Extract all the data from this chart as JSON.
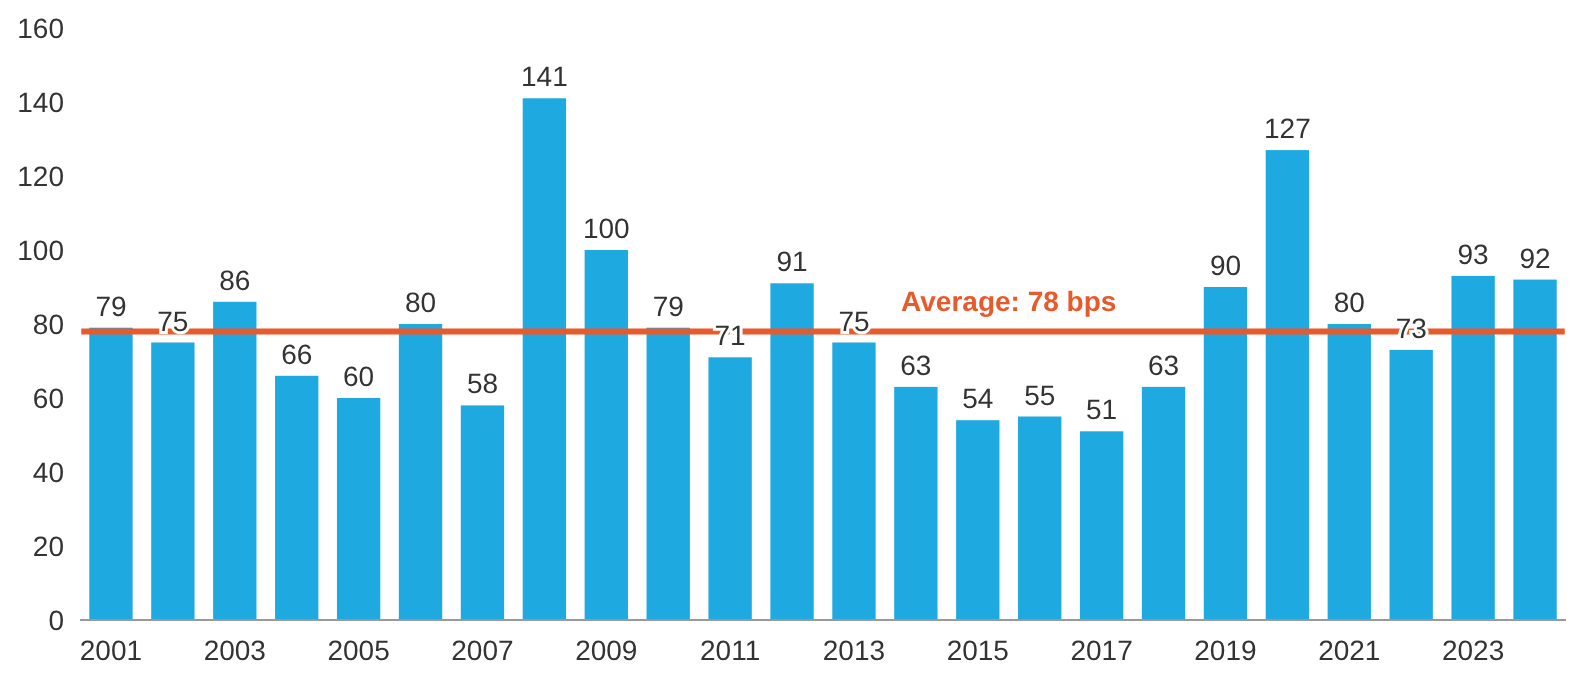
{
  "chart_data": {
    "type": "bar",
    "categories": [
      "2001",
      null,
      "2003",
      null,
      "2005",
      null,
      "2007",
      null,
      "2009",
      null,
      "2011",
      null,
      "2013",
      null,
      "2015",
      null,
      "2017",
      null,
      "2019",
      null,
      "2021",
      null,
      "2023",
      null
    ],
    "values": [
      79,
      75,
      86,
      66,
      60,
      80,
      58,
      141,
      100,
      79,
      71,
      91,
      75,
      63,
      54,
      55,
      51,
      63,
      90,
      127,
      80,
      73,
      93,
      92
    ],
    "color": "#1fa9e1",
    "data_labels": true,
    "ylim": [
      0,
      160
    ],
    "yticks": [
      0,
      20,
      40,
      60,
      80,
      100,
      120,
      140,
      160
    ],
    "grid": false,
    "ref_lines": [
      {
        "axis": "y",
        "value": 78,
        "label": "Average: 78 bps",
        "color": "#e8592b"
      }
    ]
  }
}
